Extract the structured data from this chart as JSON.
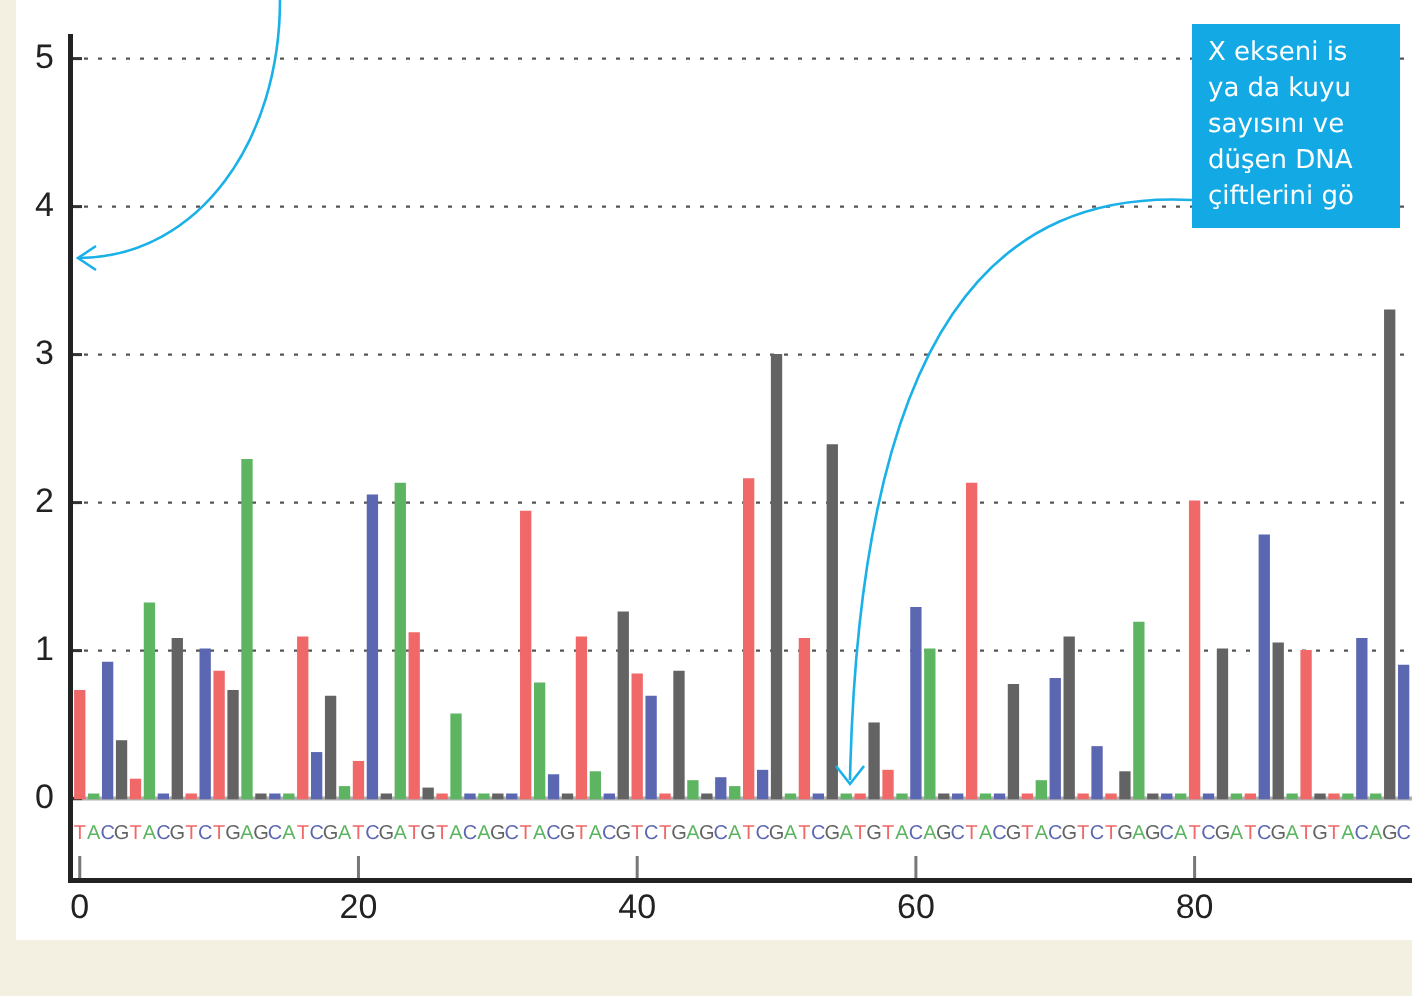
{
  "chart_data": {
    "type": "bar",
    "x": [
      0,
      1,
      2,
      3,
      4,
      5,
      6,
      7,
      8,
      9,
      10,
      11,
      12,
      13,
      14,
      15,
      16,
      17,
      18,
      19,
      20,
      21,
      22,
      23,
      24,
      25,
      26,
      27,
      28,
      29,
      30,
      31,
      32,
      33,
      34,
      35,
      36,
      37,
      38,
      39,
      40,
      41,
      42,
      43,
      44,
      45,
      46,
      47,
      48,
      49,
      50,
      51,
      52,
      53,
      54,
      55,
      56,
      57,
      58,
      59,
      60,
      61,
      62,
      63,
      64,
      65,
      66,
      67,
      68,
      69,
      70,
      71,
      72,
      73,
      74,
      75,
      76,
      77,
      78,
      79,
      80,
      81,
      82,
      83,
      84,
      85,
      86,
      87,
      88,
      89,
      90,
      91,
      92,
      93,
      94,
      95
    ],
    "values": [
      0.73,
      0.03,
      0.92,
      0.39,
      0.13,
      1.32,
      0.03,
      1.08,
      0.03,
      1.01,
      0.86,
      0.73,
      2.29,
      0.03,
      0.03,
      0.03,
      1.09,
      0.31,
      0.69,
      0.08,
      0.25,
      2.05,
      0.03,
      2.13,
      1.12,
      0.07,
      0.03,
      0.57,
      0.03,
      0.03,
      0.03,
      0.03,
      1.94,
      0.78,
      0.16,
      0.03,
      1.09,
      0.18,
      0.03,
      1.26,
      0.84,
      0.69,
      0.03,
      0.86,
      0.12,
      0.03,
      0.14,
      0.08,
      2.16,
      0.19,
      3.0,
      0.03,
      1.08,
      0.03,
      2.39,
      0.03,
      0.03,
      0.51,
      0.19,
      0.03,
      1.29,
      1.01,
      0.03,
      0.03,
      2.13,
      0.03,
      0.03,
      0.77,
      0.03,
      0.12,
      0.81,
      1.09,
      0.03,
      0.35,
      0.03,
      0.18,
      1.19,
      0.03,
      0.03,
      0.03,
      2.01,
      0.03,
      1.01,
      0.03,
      0.03,
      1.78,
      1.05,
      0.03,
      1.0,
      0.03,
      0.03,
      0.03,
      1.08,
      0.03,
      3.3,
      0.9
    ],
    "colors": [
      "#f06868",
      "#5db562",
      "#5b67b0",
      "#636363",
      "#f06868",
      "#5db562",
      "#5b67b0",
      "#636363",
      "#f06868",
      "#5b67b0",
      "#f06868",
      "#636363",
      "#5db562",
      "#636363",
      "#5b67b0",
      "#5db562",
      "#f06868",
      "#5b67b0",
      "#636363",
      "#5db562",
      "#f06868",
      "#5b67b0",
      "#636363",
      "#5db562",
      "#f06868",
      "#636363",
      "#f06868",
      "#5db562",
      "#5b67b0",
      "#5db562",
      "#636363",
      "#5b67b0",
      "#f06868",
      "#5db562",
      "#5b67b0",
      "#636363",
      "#f06868",
      "#5db562",
      "#5b67b0",
      "#636363",
      "#f06868",
      "#5b67b0",
      "#f06868",
      "#636363",
      "#5db562",
      "#636363",
      "#5b67b0",
      "#5db562",
      "#f06868",
      "#5b67b0",
      "#636363",
      "#5db562",
      "#f06868",
      "#5b67b0",
      "#636363",
      "#5db562",
      "#f06868",
      "#636363",
      "#f06868",
      "#5db562",
      "#5b67b0",
      "#5db562",
      "#636363",
      "#5b67b0",
      "#f06868",
      "#5db562",
      "#5b67b0",
      "#636363",
      "#f06868",
      "#5db562",
      "#5b67b0",
      "#636363",
      "#f06868",
      "#5b67b0",
      "#f06868",
      "#636363",
      "#5db562",
      "#636363",
      "#5b67b0",
      "#5db562",
      "#f06868",
      "#5b67b0",
      "#636363",
      "#5db562",
      "#f06868",
      "#5b67b0",
      "#636363",
      "#5db562",
      "#f06868",
      "#636363",
      "#f06868",
      "#5db562",
      "#5b67b0",
      "#5db562",
      "#636363",
      "#5b67b0"
    ],
    "xlim": [
      -0.7,
      95.6
    ],
    "xticks": [
      0,
      20,
      40,
      60,
      80
    ],
    "ylim": [
      -0.55,
      5.15
    ],
    "yticks": [
      0,
      1,
      2,
      3,
      4,
      5
    ],
    "grid": "y",
    "legend": false,
    "annotations": [
      "TACGTACGTCTGAGCATCGATCGATGTACAGCTACGTACGTCTGAGCATCGATCGATGTACAGCTACGTACGTCTGAGCATCGATCGATGTACAGC",
      "X ekseni is\nya da kuyu\nsayısını ve\ndüşen DNA\nçiftlerini gö"
    ]
  }
}
